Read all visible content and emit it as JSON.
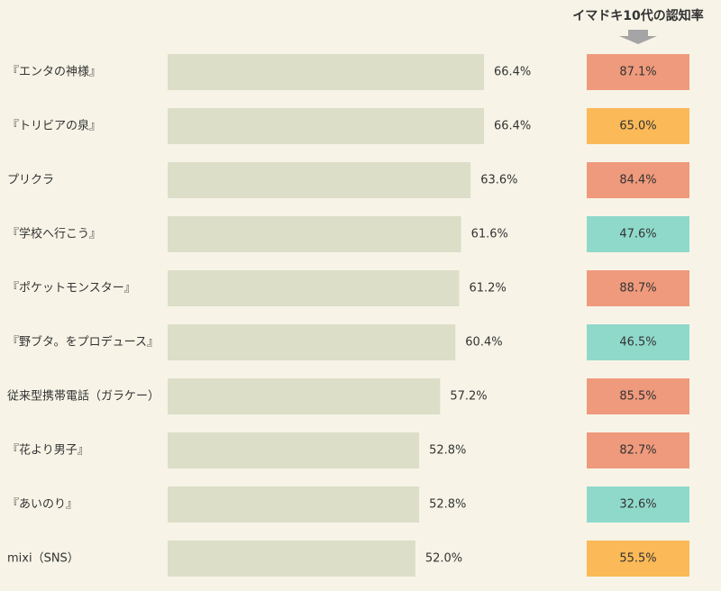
{
  "chart_data": {
    "type": "hbar",
    "categories": [
      "『エンタの神様』",
      "『トリビアの泉』",
      "プリクラ",
      "『学校へ行こう』",
      "『ポケットモンスター』",
      "『野ブタ。をプロデュース』",
      "従来型携帯電話（ガラケー）",
      "『花より男子』",
      "『あいのり』",
      "mixi（SNS）"
    ],
    "series": [
      {
        "color": "#dcdec8",
        "values": [
          66.4,
          66.4,
          63.6,
          61.6,
          61.2,
          60.4,
          57.2,
          52.8,
          52.8,
          52.0
        ],
        "value_labels": [
          "66.4%",
          "66.4%",
          "63.6%",
          "61.6%",
          "61.2%",
          "60.4%",
          "57.2%",
          "52.8%",
          "52.8%",
          "52.0%"
        ]
      },
      {
        "name": "イマドキ10代の認知率",
        "values": [
          87.1,
          65.0,
          84.4,
          47.6,
          88.7,
          46.5,
          85.5,
          82.7,
          32.6,
          55.5
        ],
        "value_labels": [
          "87.1%",
          "65.0%",
          "84.4%",
          "47.6%",
          "88.7%",
          "46.5%",
          "85.5%",
          "82.7%",
          "32.6%",
          "55.5%"
        ],
        "colors": [
          "#ef9a7c",
          "#fbb957",
          "#ef9a7c",
          "#8fd9cb",
          "#ef9a7c",
          "#8fd9cb",
          "#ef9a7c",
          "#ef9a7c",
          "#8fd9cb",
          "#fbb957"
        ]
      }
    ]
  }
}
